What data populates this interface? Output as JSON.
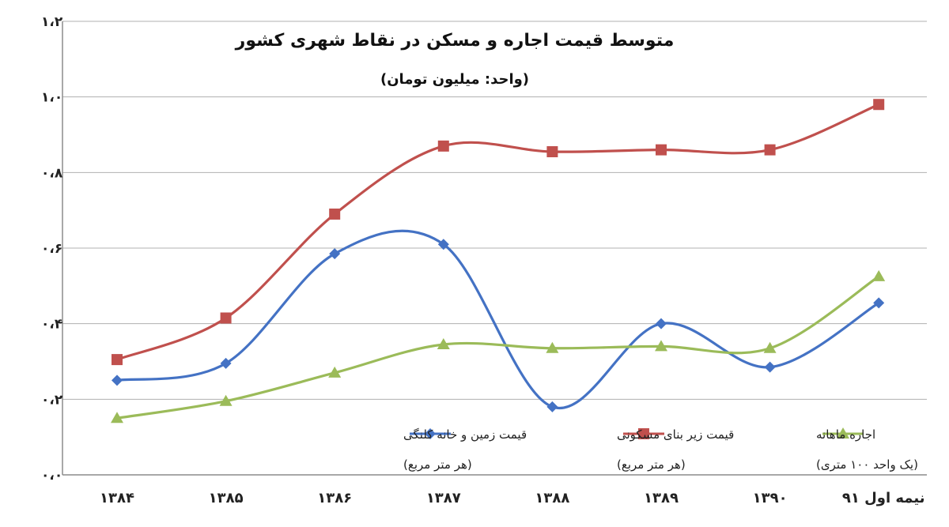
{
  "chart_data": {
    "type": "line",
    "title": "متوسط قیمت اجاره و مسکن در نقاط شهری کشور",
    "subtitle": "(واحد: میلیون تومان)",
    "categories": [
      "۱۳۸۴",
      "۱۳۸۵",
      "۱۳۸۶",
      "۱۳۸۷",
      "۱۳۸۸",
      "۱۳۸۹",
      "۱۳۹۰",
      "نیمه اول ۹۱"
    ],
    "y_tick_labels": [
      "۰،۰",
      "۰،۲",
      "۰،۴",
      "۰،۶",
      "۰،۸",
      "۱،۰",
      "۱،۲"
    ],
    "ylim": [
      0,
      1.2
    ],
    "grid": true,
    "legend_position": "bottom",
    "series": [
      {
        "name": "قیمت زمین و خانه کلنگی",
        "unit_note": "(هر متر مربع)",
        "color": "#4472C4",
        "marker": "diamond",
        "values": [
          0.25,
          0.295,
          0.585,
          0.61,
          0.18,
          0.4,
          0.285,
          0.455
        ]
      },
      {
        "name": "قیمت زیر بنای مسکونی",
        "unit_note": "(هر متر مربع)",
        "color": "#C0504D",
        "marker": "square",
        "values": [
          0.305,
          0.415,
          0.69,
          0.87,
          0.855,
          0.86,
          0.86,
          0.98
        ]
      },
      {
        "name": "اجاره ماهانه",
        "unit_note": "(یک واحد ۱۰۰ متری)",
        "color": "#9BBB59",
        "marker": "triangle",
        "values": [
          0.15,
          0.195,
          0.27,
          0.345,
          0.335,
          0.34,
          0.335,
          0.525
        ]
      }
    ]
  }
}
